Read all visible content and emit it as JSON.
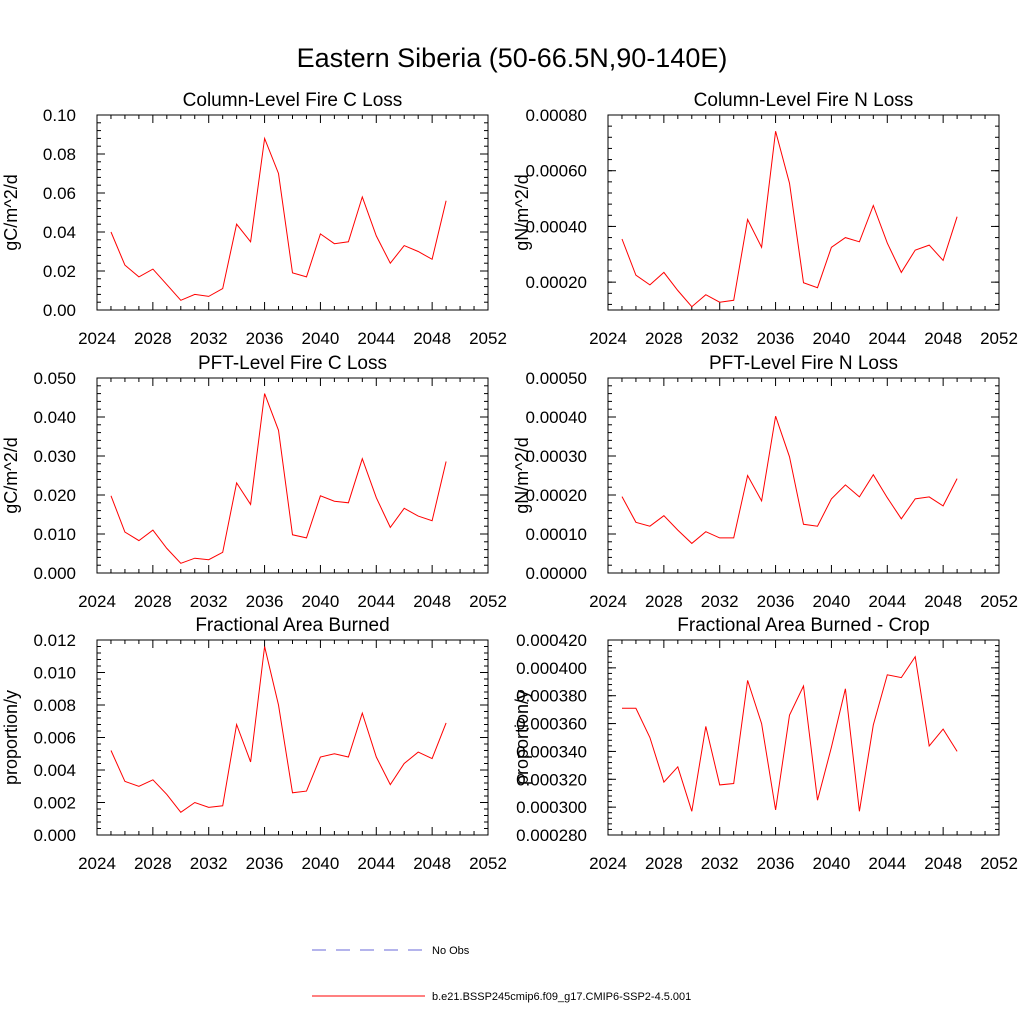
{
  "figure": {
    "title": "Eastern Siberia (50-66.5N,90-140E)",
    "line_color": "#ff0000",
    "obs_color": "#6a6ad8"
  },
  "legend": {
    "obs_label": "No Obs",
    "model_label": "b.e21.BSSP245cmip6.f09_g17.CMIP6-SSP2-4.5.001"
  },
  "chart_data": [
    {
      "type": "line",
      "title": "Column-Level Fire C Loss",
      "xlabel": "",
      "ylabel": "gC/m^2/d",
      "xlim": [
        2024,
        2052
      ],
      "ylim": [
        0,
        0.1
      ],
      "xticks": [
        "2024",
        "2028",
        "2032",
        "2036",
        "2040",
        "2044",
        "2048",
        "2052"
      ],
      "yticks": [
        "0.00",
        "0.02",
        "0.04",
        "0.06",
        "0.08",
        "0.10"
      ],
      "x": [
        2025,
        2026,
        2027,
        2028,
        2029,
        2030,
        2031,
        2032,
        2033,
        2034,
        2035,
        2036,
        2037,
        2038,
        2039,
        2040,
        2041,
        2042,
        2043,
        2044,
        2045,
        2046,
        2047,
        2048,
        2049
      ],
      "series": [
        {
          "values": [
            0.04,
            0.023,
            0.017,
            0.021,
            0.013,
            0.005,
            0.008,
            0.007,
            0.011,
            0.044,
            0.035,
            0.088,
            0.07,
            0.019,
            0.017,
            0.039,
            0.034,
            0.035,
            0.058,
            0.038,
            0.024,
            0.033,
            0.03,
            0.026,
            0.056
          ]
        }
      ]
    },
    {
      "type": "line",
      "title": "Column-Level Fire N Loss",
      "xlabel": "",
      "ylabel": "gN/m^2/d",
      "xlim": [
        2024,
        2052
      ],
      "ylim": [
        0.0001,
        0.0008
      ],
      "xticks": [
        "2024",
        "2028",
        "2032",
        "2036",
        "2040",
        "2044",
        "2048",
        "2052"
      ],
      "yticks": [
        "0.00020",
        "0.00040",
        "0.00060",
        "0.00080"
      ],
      "x": [
        2025,
        2026,
        2027,
        2028,
        2029,
        2030,
        2031,
        2032,
        2033,
        2034,
        2035,
        2036,
        2037,
        2038,
        2039,
        2040,
        2041,
        2042,
        2043,
        2044,
        2045,
        2046,
        2047,
        2048,
        2049
      ],
      "series": [
        {
          "values": [
            0.000355,
            0.000225,
            0.00019,
            0.000235,
            0.00017,
            0.000112,
            0.000155,
            0.000128,
            0.000135,
            0.000425,
            0.000325,
            0.000742,
            0.000555,
            0.000198,
            0.00018,
            0.000325,
            0.00036,
            0.000345,
            0.000475,
            0.00034,
            0.000235,
            0.000315,
            0.000333,
            0.000278,
            0.000435
          ]
        }
      ]
    },
    {
      "type": "line",
      "title": "PFT-Level Fire C Loss",
      "xlabel": "",
      "ylabel": "gC/m^2/d",
      "xlim": [
        2024,
        2052
      ],
      "ylim": [
        0,
        0.05
      ],
      "xticks": [
        "2024",
        "2028",
        "2032",
        "2036",
        "2040",
        "2044",
        "2048",
        "2052"
      ],
      "yticks": [
        "0.000",
        "0.010",
        "0.020",
        "0.030",
        "0.040",
        "0.050"
      ],
      "x": [
        2025,
        2026,
        2027,
        2028,
        2029,
        2030,
        2031,
        2032,
        2033,
        2034,
        2035,
        2036,
        2037,
        2038,
        2039,
        2040,
        2041,
        2042,
        2043,
        2044,
        2045,
        2046,
        2047,
        2048,
        2049
      ],
      "series": [
        {
          "values": [
            0.0198,
            0.0105,
            0.0083,
            0.011,
            0.0063,
            0.0025,
            0.0038,
            0.0034,
            0.0053,
            0.0231,
            0.0176,
            0.046,
            0.0366,
            0.0098,
            0.009,
            0.0198,
            0.0184,
            0.018,
            0.0293,
            0.0193,
            0.0117,
            0.0166,
            0.0146,
            0.0134,
            0.0286
          ]
        }
      ]
    },
    {
      "type": "line",
      "title": "PFT-Level Fire N Loss",
      "xlabel": "",
      "ylabel": "gN/m^2/d",
      "xlim": [
        2024,
        2052
      ],
      "ylim": [
        0,
        0.0005
      ],
      "xticks": [
        "2024",
        "2028",
        "2032",
        "2036",
        "2040",
        "2044",
        "2048",
        "2052"
      ],
      "yticks": [
        "0.00000",
        "0.00010",
        "0.00020",
        "0.00030",
        "0.00040",
        "0.00050"
      ],
      "x": [
        2025,
        2026,
        2027,
        2028,
        2029,
        2030,
        2031,
        2032,
        2033,
        2034,
        2035,
        2036,
        2037,
        2038,
        2039,
        2040,
        2041,
        2042,
        2043,
        2044,
        2045,
        2046,
        2047,
        2048,
        2049
      ],
      "series": [
        {
          "values": [
            0.000196,
            0.00013,
            0.00012,
            0.000147,
            0.00011,
            7.6e-05,
            0.000106,
            9e-05,
            9e-05,
            0.00025,
            0.000185,
            0.000402,
            0.000298,
            0.000125,
            0.00012,
            0.00019,
            0.000226,
            0.000195,
            0.000252,
            0.000193,
            0.000139,
            0.00019,
            0.000195,
            0.000172,
            0.000242
          ]
        }
      ]
    },
    {
      "type": "line",
      "title": "Fractional Area Burned",
      "xlabel": "",
      "ylabel": "proportion/y",
      "xlim": [
        2024,
        2052
      ],
      "ylim": [
        0,
        0.012
      ],
      "xticks": [
        "2024",
        "2028",
        "2032",
        "2036",
        "2040",
        "2044",
        "2048",
        "2052"
      ],
      "yticks": [
        "0.000",
        "0.002",
        "0.004",
        "0.006",
        "0.008",
        "0.010",
        "0.012"
      ],
      "x": [
        2025,
        2026,
        2027,
        2028,
        2029,
        2030,
        2031,
        2032,
        2033,
        2034,
        2035,
        2036,
        2037,
        2038,
        2039,
        2040,
        2041,
        2042,
        2043,
        2044,
        2045,
        2046,
        2047,
        2048,
        2049
      ],
      "series": [
        {
          "values": [
            0.0052,
            0.0033,
            0.003,
            0.0034,
            0.0025,
            0.0014,
            0.002,
            0.0017,
            0.0018,
            0.0068,
            0.0045,
            0.0116,
            0.008,
            0.0026,
            0.0027,
            0.0048,
            0.005,
            0.0048,
            0.0075,
            0.0048,
            0.0031,
            0.0044,
            0.0051,
            0.0047,
            0.0069
          ]
        }
      ]
    },
    {
      "type": "line",
      "title": "Fractional Area Burned - Crop",
      "xlabel": "",
      "ylabel": "proportion/y",
      "xlim": [
        2024,
        2052
      ],
      "ylim": [
        0.00028,
        0.00042
      ],
      "xticks": [
        "2024",
        "2028",
        "2032",
        "2036",
        "2040",
        "2044",
        "2048",
        "2052"
      ],
      "yticks": [
        "0.000280",
        "0.000300",
        "0.000320",
        "0.000340",
        "0.000360",
        "0.000380",
        "0.000400",
        "0.000420"
      ],
      "x": [
        2025,
        2026,
        2027,
        2028,
        2029,
        2030,
        2031,
        2032,
        2033,
        2034,
        2035,
        2036,
        2037,
        2038,
        2039,
        2040,
        2041,
        2042,
        2043,
        2044,
        2045,
        2046,
        2047,
        2048,
        2049
      ],
      "series": [
        {
          "values": [
            0.000371,
            0.000371,
            0.00035,
            0.000318,
            0.000329,
            0.000297,
            0.000358,
            0.000316,
            0.000317,
            0.000391,
            0.00036,
            0.000298,
            0.000366,
            0.000387,
            0.000305,
            0.000343,
            0.000385,
            0.000297,
            0.000359,
            0.000395,
            0.000393,
            0.000408,
            0.000344,
            0.000356,
            0.00034
          ]
        }
      ]
    }
  ]
}
